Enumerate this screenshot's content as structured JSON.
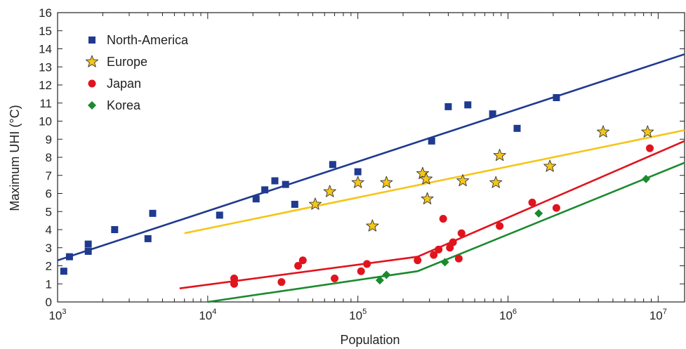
{
  "chart_data": {
    "type": "scatter",
    "title": "",
    "xlabel": "Population",
    "ylabel": "Maximum UHI (°C)",
    "xscale": "log",
    "xlim": [
      1000,
      15000000
    ],
    "ylim": [
      0,
      16
    ],
    "x_ticks": [
      {
        "base": "10",
        "exp": "3",
        "value": 1000
      },
      {
        "base": "10",
        "exp": "4",
        "value": 10000
      },
      {
        "base": "10",
        "exp": "5",
        "value": 100000
      },
      {
        "base": "10",
        "exp": "6",
        "value": 1000000
      },
      {
        "base": "10",
        "exp": "7",
        "value": 10000000
      }
    ],
    "y_ticks": [
      "0",
      "1",
      "2",
      "3",
      "4",
      "5",
      "6",
      "7",
      "8",
      "9",
      "10",
      "11",
      "12",
      "13",
      "14",
      "15",
      "16"
    ],
    "legend": {
      "position": "top-left"
    },
    "series": [
      {
        "name": "North-America",
        "marker": "square",
        "color": "#1f3a8f",
        "points": [
          [
            1100,
            1.7
          ],
          [
            1200,
            2.5
          ],
          [
            1600,
            2.8
          ],
          [
            1600,
            3.2
          ],
          [
            2400,
            4.0
          ],
          [
            4000,
            3.5
          ],
          [
            4300,
            4.9
          ],
          [
            12000,
            4.8
          ],
          [
            21000,
            5.7
          ],
          [
            24000,
            6.2
          ],
          [
            28000,
            6.7
          ],
          [
            33000,
            6.5
          ],
          [
            38000,
            5.4
          ],
          [
            68000,
            7.6
          ],
          [
            100000,
            7.2
          ],
          [
            310000,
            8.9
          ],
          [
            400000,
            10.8
          ],
          [
            540000,
            10.9
          ],
          [
            790000,
            10.4
          ],
          [
            1150000,
            9.6
          ],
          [
            2100000,
            11.3
          ]
        ],
        "fit": [
          [
            1000,
            2.3
          ],
          [
            15000000,
            13.7
          ]
        ]
      },
      {
        "name": "Europe",
        "marker": "star",
        "color": "#f5c518",
        "points": [
          [
            52000,
            5.4
          ],
          [
            65000,
            6.1
          ],
          [
            100000,
            6.6
          ],
          [
            125000,
            4.2
          ],
          [
            155000,
            6.6
          ],
          [
            270000,
            7.1
          ],
          [
            285000,
            6.8
          ],
          [
            290000,
            5.7
          ],
          [
            500000,
            6.7
          ],
          [
            830000,
            6.6
          ],
          [
            880000,
            8.1
          ],
          [
            1900000,
            7.5
          ],
          [
            4300000,
            9.4
          ],
          [
            8500000,
            9.4
          ]
        ],
        "fit": [
          [
            7000,
            3.8
          ],
          [
            15000000,
            9.5
          ]
        ]
      },
      {
        "name": "Japan",
        "marker": "circle",
        "color": "#e0141e",
        "points": [
          [
            15000,
            1.3
          ],
          [
            15000,
            1.0
          ],
          [
            31000,
            1.1
          ],
          [
            40000,
            2.0
          ],
          [
            43000,
            2.3
          ],
          [
            70000,
            1.3
          ],
          [
            105000,
            1.7
          ],
          [
            115000,
            2.1
          ],
          [
            250000,
            2.3
          ],
          [
            320000,
            2.6
          ],
          [
            345000,
            2.9
          ],
          [
            370000,
            4.6
          ],
          [
            410000,
            3.0
          ],
          [
            430000,
            3.3
          ],
          [
            470000,
            2.4
          ],
          [
            490000,
            3.8
          ],
          [
            880000,
            4.2
          ],
          [
            1450000,
            5.5
          ],
          [
            2100000,
            5.2
          ],
          [
            8800000,
            8.5
          ]
        ],
        "fit": [
          [
            6500,
            0.75
          ],
          [
            250000,
            2.5
          ],
          [
            15000000,
            8.9
          ]
        ]
      },
      {
        "name": "Korea",
        "marker": "diamond",
        "color": "#1a8a2e",
        "points": [
          [
            140000,
            1.2
          ],
          [
            155000,
            1.5
          ],
          [
            380000,
            2.2
          ],
          [
            1600000,
            4.9
          ],
          [
            8300000,
            6.8
          ]
        ],
        "fit": [
          [
            10000,
            0.0
          ],
          [
            250000,
            1.7
          ],
          [
            15000000,
            7.7
          ]
        ]
      }
    ]
  }
}
